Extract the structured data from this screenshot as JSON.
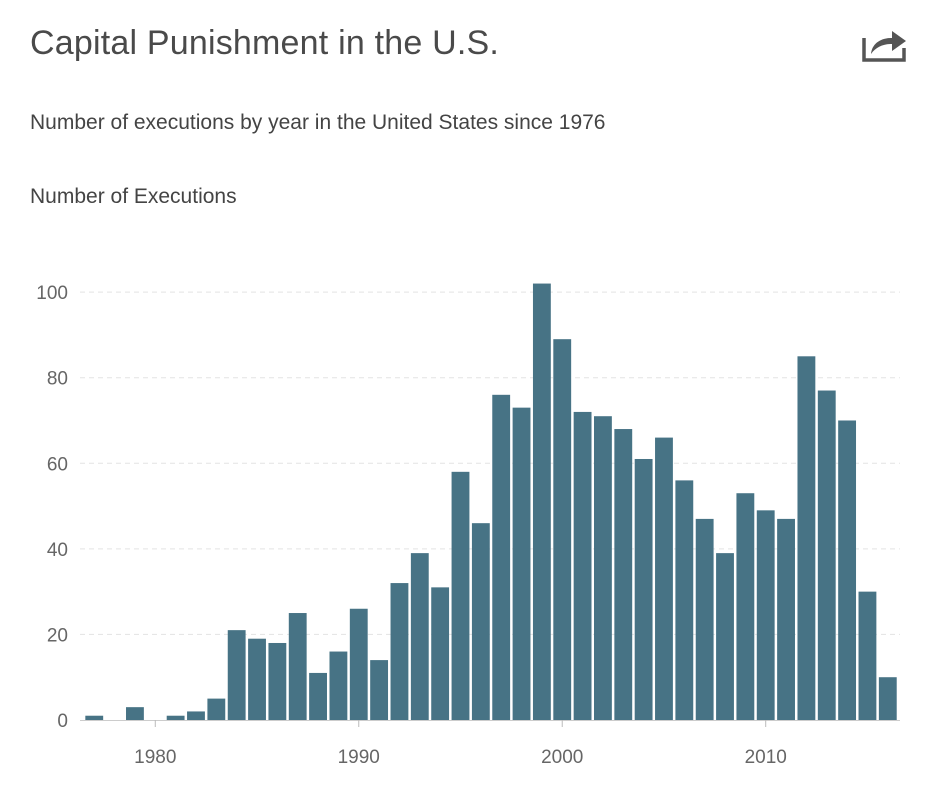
{
  "header": {
    "title": "Capital Punishment in the U.S.",
    "subtitle": "Number of executions by year in the United States since 1976",
    "share_icon": "share-icon"
  },
  "colors": {
    "bar": "#477385",
    "grid": "#e3e3e3",
    "axis_text": "#666666"
  },
  "chart_data": {
    "type": "bar",
    "title": "Capital Punishment in the U.S.",
    "subtitle": "Number of executions by year in the United States since 1976",
    "xlabel": "",
    "ylabel": "Number of Executions",
    "x": [
      1977,
      1978,
      1979,
      1980,
      1981,
      1982,
      1983,
      1984,
      1985,
      1986,
      1987,
      1988,
      1989,
      1990,
      1991,
      1992,
      1993,
      1994,
      1995,
      1996,
      1997,
      1998,
      1999,
      2000,
      2001,
      2002,
      2003,
      2004,
      2005,
      2006,
      2007,
      2008,
      2009,
      2010,
      2011,
      2012,
      2013,
      2014,
      2015,
      2016
    ],
    "values": [
      1,
      0,
      3,
      0,
      1,
      2,
      5,
      21,
      19,
      18,
      25,
      11,
      16,
      26,
      14,
      32,
      39,
      31,
      58,
      46,
      76,
      73,
      102,
      89,
      72,
      71,
      68,
      61,
      66,
      56,
      47,
      39,
      53,
      49,
      47,
      85,
      77,
      70,
      30,
      10
    ],
    "xlim": [
      1976.3,
      2016.6
    ],
    "ylim": [
      0,
      104
    ],
    "x_ticks": [
      1980,
      1990,
      2000,
      2010
    ],
    "x_tick_labels": [
      "1980",
      "1990",
      "2000",
      "2010"
    ],
    "y_ticks": [
      0,
      20,
      40,
      60,
      80,
      100
    ],
    "y_tick_labels": [
      "0",
      "20",
      "40",
      "60",
      "80",
      "100"
    ],
    "grid": true,
    "legend": "none"
  }
}
